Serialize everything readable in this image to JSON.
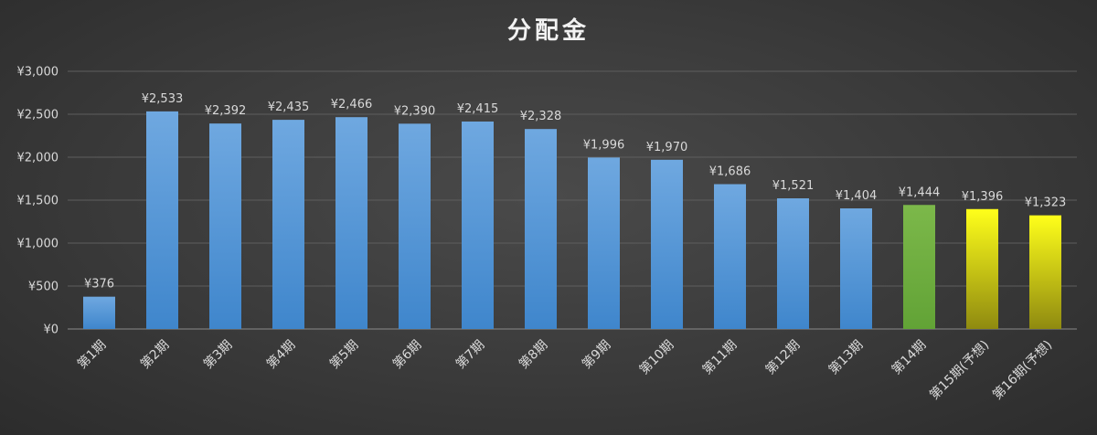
{
  "chart_data": {
    "type": "bar",
    "title": "分配金",
    "categories": [
      "第1期",
      "第2期",
      "第3期",
      "第4期",
      "第5期",
      "第6期",
      "第7期",
      "第8期",
      "第9期",
      "第10期",
      "第11期",
      "第12期",
      "第13期",
      "第14期",
      "第15期(予想)",
      "第16期(予想)"
    ],
    "values": [
      376,
      2533,
      2392,
      2435,
      2466,
      2390,
      2415,
      2328,
      1996,
      1970,
      1686,
      1521,
      1404,
      1444,
      1396,
      1323
    ],
    "data_labels": [
      "¥376",
      "¥2,533",
      "¥2,392",
      "¥2,435",
      "¥2,466",
      "¥2,390",
      "¥2,415",
      "¥2,328",
      "¥1,996",
      "¥1,970",
      "¥1,686",
      "¥1,521",
      "¥1,404",
      "¥1,444",
      "¥1,396",
      "¥1,323"
    ],
    "bar_styles": [
      "blue",
      "blue",
      "blue",
      "blue",
      "blue",
      "blue",
      "blue",
      "blue",
      "blue",
      "blue",
      "blue",
      "blue",
      "blue",
      "green",
      "yellow",
      "yellow"
    ],
    "y_ticks": [
      0,
      500,
      1000,
      1500,
      2000,
      2500,
      3000
    ],
    "y_tick_labels": [
      "¥0",
      "¥500",
      "¥1,000",
      "¥1,500",
      "¥2,000",
      "¥2,500",
      "¥3,000"
    ],
    "ylim": [
      0,
      3000
    ],
    "xlabel": "",
    "ylabel": "",
    "grid": true,
    "legend": "none",
    "colors": {
      "blue_top": "#6fa8e0",
      "blue_bottom": "#3f86cc",
      "green_top": "#7cb84a",
      "green_bottom": "#62a336",
      "yellow_top": "#ffff1a",
      "yellow_bottom": "#8f8a10",
      "background": "#3a3a3a"
    }
  }
}
